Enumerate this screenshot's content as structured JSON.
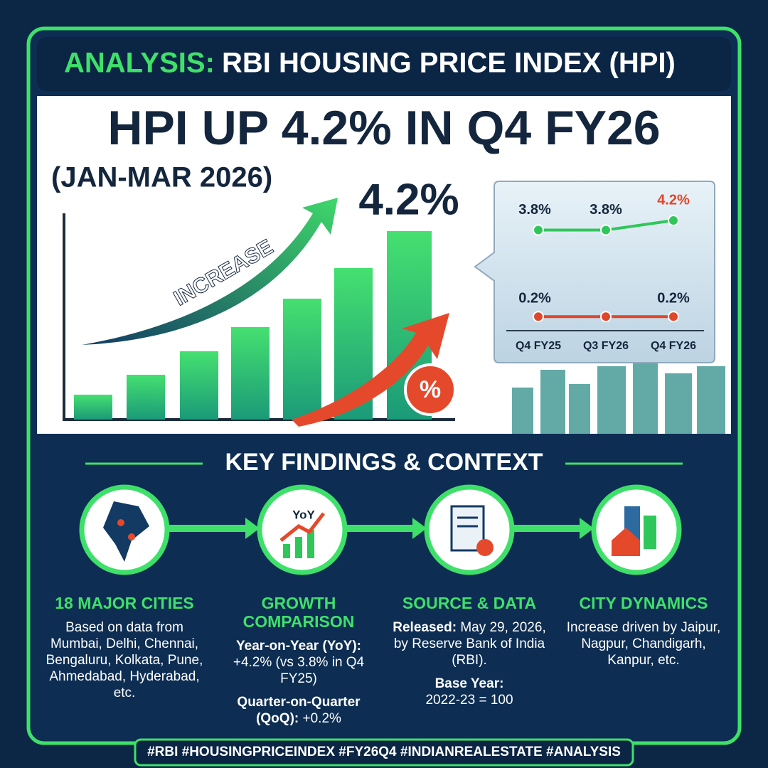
{
  "header": {
    "label": "ANALYSIS:",
    "title": "RBI HOUSING PRICE INDEX (HPI)"
  },
  "headline": "HPI UP 4.2% IN Q4 FY26",
  "subheadline": "(JAN-MAR 2026)",
  "hero": {
    "arrow_label": "INCREASE",
    "big_value": "4.2%",
    "badge": "%"
  },
  "chart_data": {
    "type": "line",
    "categories": [
      "Q4 FY25",
      "Q3 FY26",
      "Q4 FY26"
    ],
    "series": [
      {
        "color": "#2fc75a",
        "values": [
          3.8,
          3.8,
          4.2
        ],
        "value_labels": [
          "3.8%",
          "3.8%",
          "4.2%"
        ]
      },
      {
        "color": "#e0462a",
        "values": [
          0.2,
          0.2,
          0.2
        ],
        "value_labels": [
          "0.2%",
          null,
          "0.2%"
        ]
      }
    ]
  },
  "findings": {
    "title": "KEY FINDINGS & CONTEXT",
    "items": [
      {
        "title": "18 MAJOR CITIES",
        "body": "Based on data from Mumbai, Delhi, Chennai, Bengaluru, Kolkata, Pune, Ahmedabad, Hyderabad, etc."
      },
      {
        "icon_text": "YoY",
        "title": "GROWTH COMPARISON",
        "lines": [
          {
            "label": "Year-on-Year (YoY):",
            "text": "+4.2% (vs 3.8% in Q4 FY25)"
          },
          {
            "label": "Quarter-on-Quarter (QoQ):",
            "text": "+0.2%"
          }
        ]
      },
      {
        "title": "SOURCE & DATA",
        "lines": [
          {
            "label": "Released:",
            "text": "May 29, 2026, by Reserve Bank of India (RBI)."
          },
          {
            "label": "Base Year:",
            "text": "2022-23 = 100"
          }
        ]
      },
      {
        "title": "CITY DYNAMICS",
        "body": "Increase driven by Jaipur, Nagpur, Chandigarh, Kanpur, etc."
      }
    ]
  },
  "footer": "#RBI #HOUSINGPRICEINDEX #FY26Q4 #INDIANREALESTATE #ANALYSIS"
}
